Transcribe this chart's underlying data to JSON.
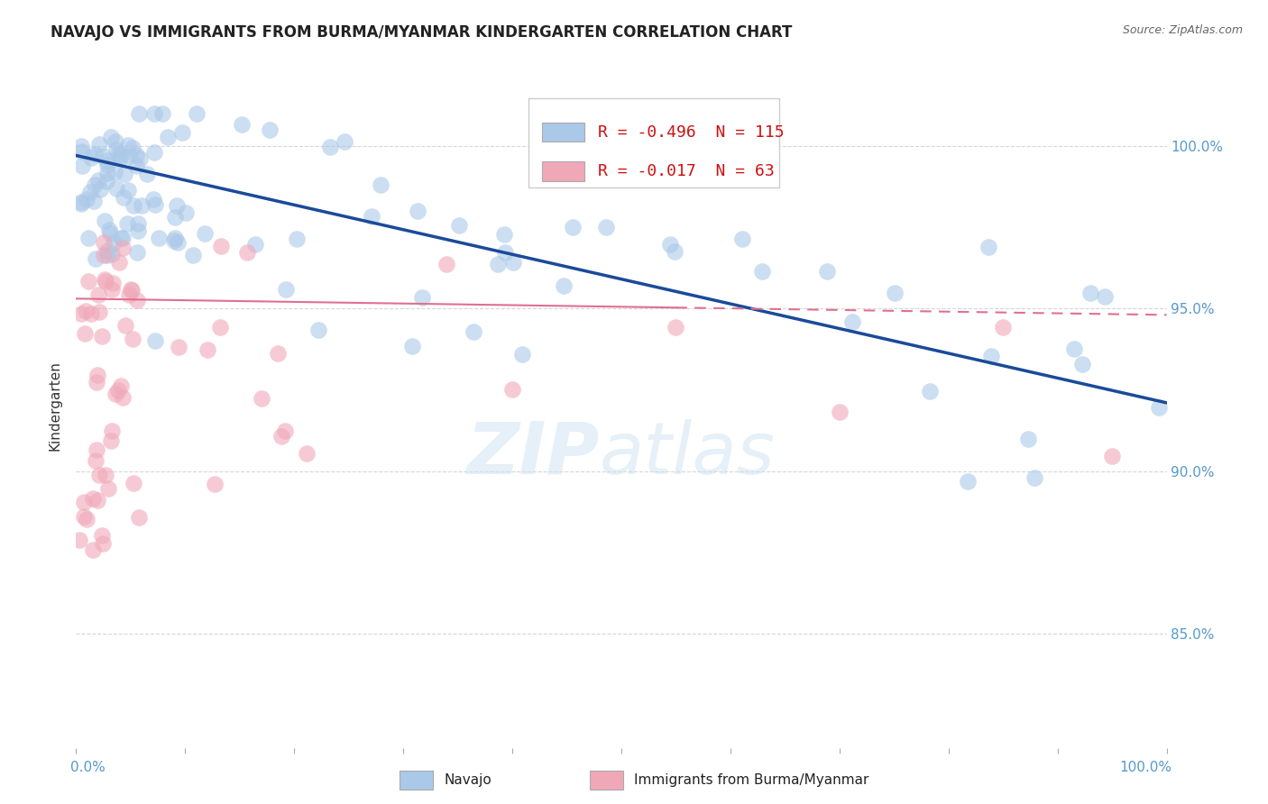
{
  "title": "NAVAJO VS IMMIGRANTS FROM BURMA/MYANMAR KINDERGARTEN CORRELATION CHART",
  "source": "Source: ZipAtlas.com",
  "ylabel": "Kindergarten",
  "series1_name": "Navajo",
  "series2_name": "Immigrants from Burma/Myanmar",
  "series1_color": "#aac8e8",
  "series2_color": "#f0a8b8",
  "series1_edge_color": "#7aaad0",
  "series2_edge_color": "#e07090",
  "series1_line_color": "#1a4a9a",
  "series2_line_color": "#e07090",
  "R1": -0.496,
  "N1": 115,
  "R2": -0.017,
  "N2": 63,
  "ytick_labels": [
    "85.0%",
    "90.0%",
    "95.0%",
    "100.0%"
  ],
  "ytick_values": [
    0.85,
    0.9,
    0.95,
    1.0
  ],
  "xmin": 0.0,
  "xmax": 1.0,
  "ymin": 0.815,
  "ymax": 1.025,
  "navajo_trend_start": 0.997,
  "navajo_trend_end": 0.921,
  "burma_trend_start": 0.953,
  "burma_trend_end": 0.948,
  "watermark_zip_color": "#c8d8f0",
  "watermark_atlas_color": "#c8d8f0",
  "background_color": "#ffffff",
  "grid_color": "#cccccc",
  "grid_style": "--",
  "title_fontsize": 12,
  "axis_label_fontsize": 11,
  "tick_fontsize": 11,
  "legend_fontsize": 13,
  "marker_size": 180,
  "marker_alpha": 0.6
}
